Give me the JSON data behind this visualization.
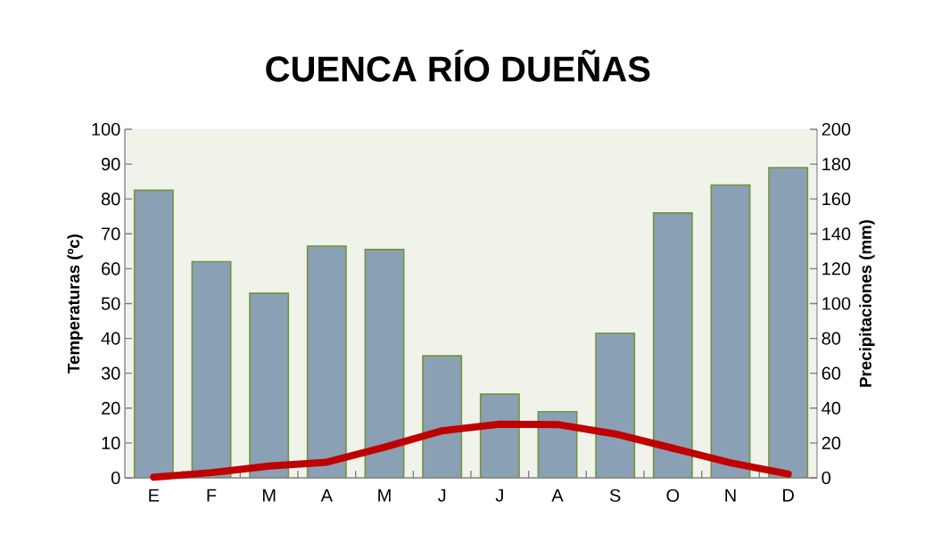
{
  "chart_data": {
    "type": "bar",
    "title": "CUENCA RÍO DUEÑAS",
    "categories": [
      "E",
      "F",
      "M",
      "A",
      "M",
      "J",
      "J",
      "A",
      "S",
      "O",
      "N",
      "D"
    ],
    "ylabel": "Temperaturas (ºc)",
    "y2label": "Precipitaciones (mm)",
    "ylim": [
      0,
      100
    ],
    "yticks": [
      0,
      10,
      20,
      30,
      40,
      50,
      60,
      70,
      80,
      90,
      100
    ],
    "y2lim": [
      0,
      200
    ],
    "y2ticks": [
      0,
      20,
      40,
      60,
      80,
      100,
      120,
      140,
      160,
      180,
      200
    ],
    "series": [
      {
        "axis": "y2",
        "color": "#8aa0b4",
        "values": [
          165,
          124,
          106,
          133,
          131,
          70,
          48,
          38,
          83,
          152,
          168,
          178
        ]
      },
      {
        "type": "line",
        "axis": "y",
        "color": "#c00000",
        "values": [
          0.2,
          1.5,
          3.4,
          4.5,
          8.8,
          13.5,
          15.4,
          15.3,
          12.6,
          8.5,
          4.3,
          1.1
        ]
      }
    ]
  }
}
